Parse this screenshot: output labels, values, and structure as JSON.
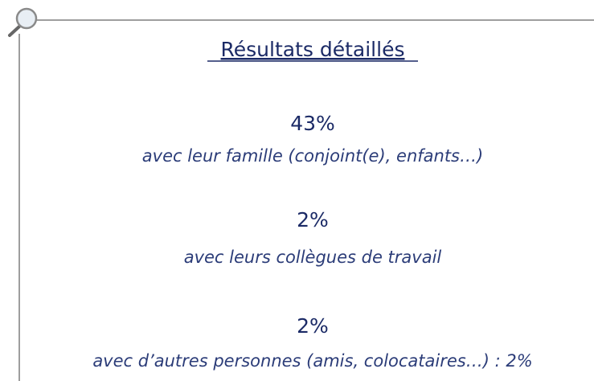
{
  "title": "Résultats détaillés",
  "items": [
    {
      "value": "43%",
      "label": "avec leur famille (conjoint(e), enfants…)"
    },
    {
      "value": "2%",
      "label": "avec leurs collègues de travail"
    },
    {
      "value": "2%",
      "label": "avec d’autres personnes (amis, colocataires…) : 2%"
    }
  ]
}
